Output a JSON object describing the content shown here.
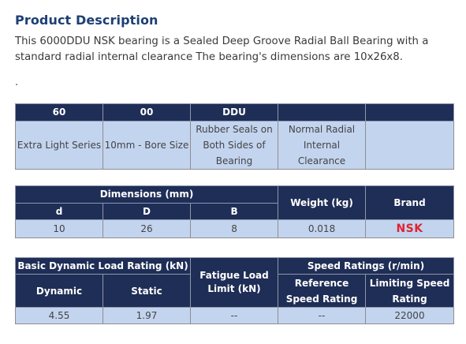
{
  "heading": "Product Description",
  "description": "This 6000DDU NSK bearing is a Sealed Deep Groove Radial Ball Bearing with a standard radial internal clearance The bearing's dimensions are 10x26x8.",
  "separator": ".",
  "table1": {
    "headers": [
      "60",
      "00",
      "DDU",
      "",
      ""
    ],
    "cells": [
      "Extra Light Series",
      "10mm - Bore Size",
      "Rubber Seals on Both Sides of Bearing",
      "Normal Radial Internal Clearance",
      ""
    ]
  },
  "table2": {
    "group_header": "Dimensions (mm)",
    "weight_header": "Weight (kg)",
    "brand_header": "Brand",
    "sub_headers": [
      "d",
      "D",
      "B"
    ],
    "values": [
      "10",
      "26",
      "8",
      "0.018",
      "NSK"
    ]
  },
  "table3": {
    "load_header": "Basic Dynamic Load Rating (kN)",
    "fatigue_header": "Fatigue Load Limit (kN)",
    "speed_header": "Speed Ratings (r/min)",
    "sub_headers": [
      "Dynamic",
      "Static",
      "Reference Speed Rating",
      "Limiting Speed Rating"
    ],
    "values": [
      "4.55",
      "1.97",
      "--",
      "--",
      "22000"
    ]
  },
  "colors": {
    "header_bg": "#1f2e56",
    "cell_bg": "#c3d4ef",
    "title": "#1d3f74",
    "brand": "#e0242e"
  }
}
